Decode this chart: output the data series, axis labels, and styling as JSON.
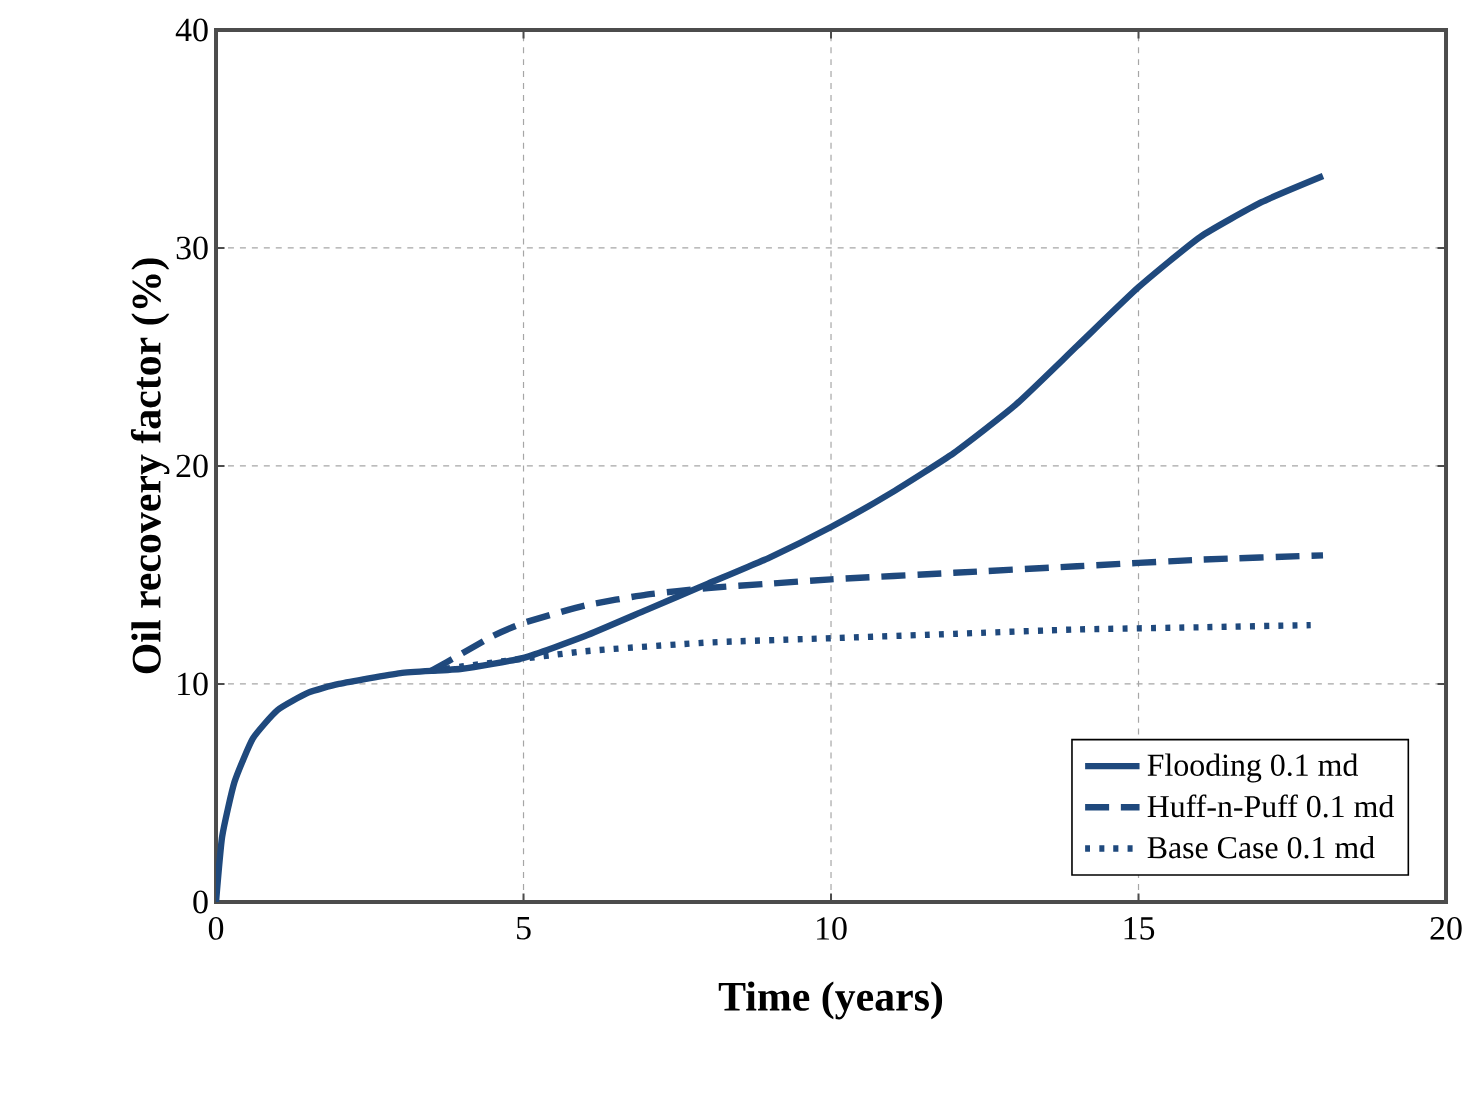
{
  "chart_data": {
    "type": "line",
    "xlabel": "Time (years)",
    "ylabel": "Oil recovery factor (%)",
    "xlim": [
      0,
      20
    ],
    "ylim": [
      0,
      40
    ],
    "xticks": [
      0,
      5,
      10,
      15,
      20
    ],
    "yticks": [
      0,
      10,
      20,
      30,
      40
    ],
    "grid": true,
    "legend": "bottom right",
    "marker": "none",
    "series": [
      {
        "name": "Flooding 0.1 md",
        "color": "#1f497d",
        "line_style": "solid",
        "x": [
          0,
          0.1,
          0.3,
          0.6,
          1,
          1.5,
          2,
          3,
          4,
          5,
          6,
          7,
          8,
          9,
          10,
          11,
          12,
          13,
          14,
          15,
          16,
          17,
          18
        ],
        "values": [
          0,
          3,
          5.5,
          7.5,
          8.8,
          9.6,
          10,
          10.5,
          10.7,
          11.2,
          12.2,
          13.4,
          14.6,
          15.8,
          17.2,
          18.8,
          20.6,
          22.8,
          25.5,
          28.2,
          30.5,
          32.1,
          33.3
        ]
      },
      {
        "name": "Huff-n-Puff 0.1 md",
        "color": "#1f497d",
        "line_style": "dashed",
        "x": [
          3.5,
          4,
          4.5,
          5,
          6,
          7,
          8,
          9,
          10,
          12,
          14,
          16,
          18
        ],
        "values": [
          10.6,
          11.4,
          12.2,
          12.8,
          13.6,
          14.1,
          14.4,
          14.6,
          14.8,
          15.1,
          15.4,
          15.7,
          15.9
        ]
      },
      {
        "name": "Base Case 0.1 md",
        "color": "#1f497d",
        "line_style": "dotted",
        "x": [
          3.5,
          4,
          6,
          8,
          10,
          12,
          14,
          16,
          17.8
        ],
        "values": [
          10.6,
          10.8,
          11.5,
          11.9,
          12.1,
          12.3,
          12.5,
          12.6,
          12.7
        ]
      }
    ]
  }
}
